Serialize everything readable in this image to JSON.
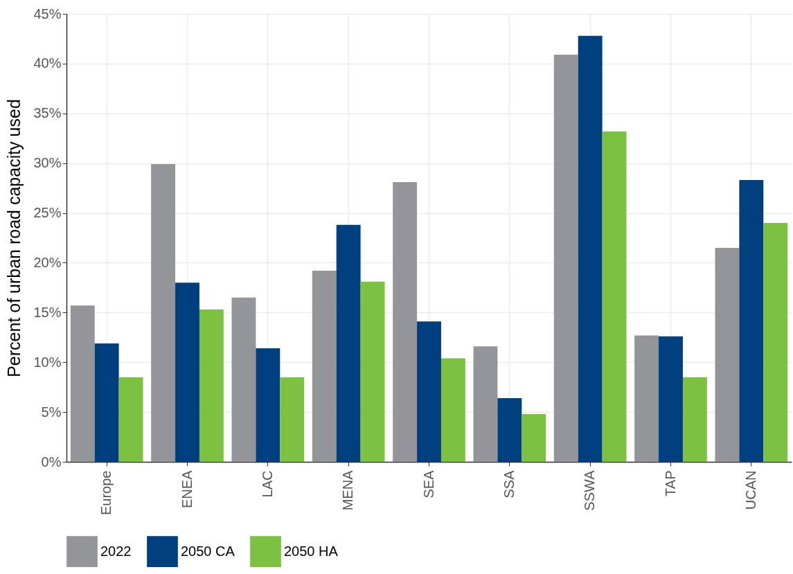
{
  "chart_data": {
    "type": "bar",
    "ylabel": "Percent of urban road capacity used",
    "categories": [
      "Europe",
      "ENEA",
      "LAC",
      "MENA",
      "SEA",
      "SSA",
      "SSWA",
      "TAP",
      "UCAN"
    ],
    "series": [
      {
        "name": "2022",
        "color": "#939598",
        "values": [
          15.7,
          29.9,
          16.5,
          19.2,
          28.1,
          11.6,
          40.9,
          12.7,
          21.5
        ]
      },
      {
        "name": "2050 CA",
        "color": "#003f7d",
        "values": [
          11.9,
          18.0,
          11.4,
          23.8,
          14.1,
          6.4,
          42.8,
          12.6,
          28.3
        ]
      },
      {
        "name": "2050 HA",
        "color": "#7dc142",
        "values": [
          8.5,
          15.3,
          8.5,
          18.1,
          10.4,
          4.8,
          33.2,
          8.5,
          24.0
        ]
      }
    ],
    "ylim": [
      0,
      45
    ],
    "yticks": [
      {
        "value": 0,
        "label": "0%"
      },
      {
        "value": 5,
        "label": "5%"
      },
      {
        "value": 10,
        "label": "10%"
      },
      {
        "value": 15,
        "label": "15%"
      },
      {
        "value": 20,
        "label": "20%"
      },
      {
        "value": 25,
        "label": "25%"
      },
      {
        "value": 30,
        "label": "30%"
      },
      {
        "value": 35,
        "label": "35%"
      },
      {
        "value": 40,
        "label": "40%"
      },
      {
        "value": 45,
        "label": "45%"
      }
    ],
    "grid": true,
    "legend": "bottom"
  }
}
